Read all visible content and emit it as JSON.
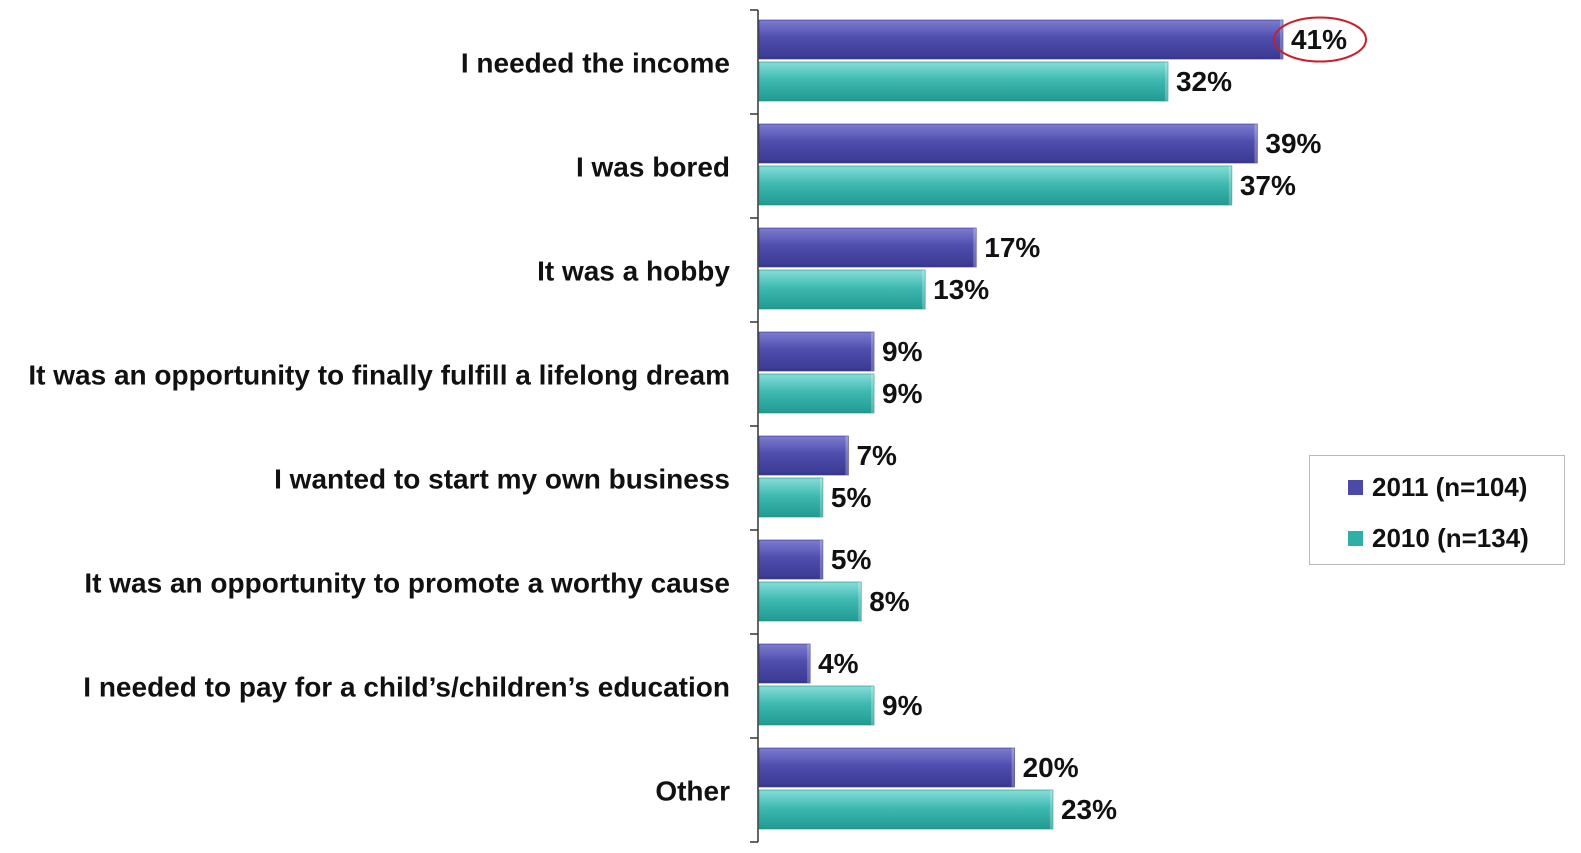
{
  "chart_data": {
    "type": "bar",
    "orientation": "horizontal",
    "categories": [
      "I needed the income",
      "I was bored",
      "It was a hobby",
      "It was an opportunity to finally fulfill a lifelong dream",
      "I wanted to start my own business",
      "It was an opportunity to promote a worthy cause",
      "I needed to pay for a child’s/children’s education",
      "Other"
    ],
    "series": [
      {
        "name": "2011 (n=104)",
        "color": "#4b4aa6",
        "values": [
          41,
          39,
          17,
          9,
          7,
          5,
          4,
          20
        ],
        "labels": [
          "41%",
          "39%",
          "17%",
          "9%",
          "7%",
          "5%",
          "4%",
          "20%"
        ]
      },
      {
        "name": "2010 (n=134)",
        "color": "#2fb0a7",
        "values": [
          32,
          37,
          13,
          9,
          5,
          8,
          9,
          23
        ],
        "labels": [
          "32%",
          "37%",
          "13%",
          "9%",
          "5%",
          "8%",
          "9%",
          "23%"
        ]
      }
    ],
    "xlim": [
      0,
      60
    ],
    "grid": false,
    "legend_position": "right",
    "highlighted_label": {
      "series": 0,
      "category": 0,
      "outline_color": "#c8202a"
    }
  }
}
